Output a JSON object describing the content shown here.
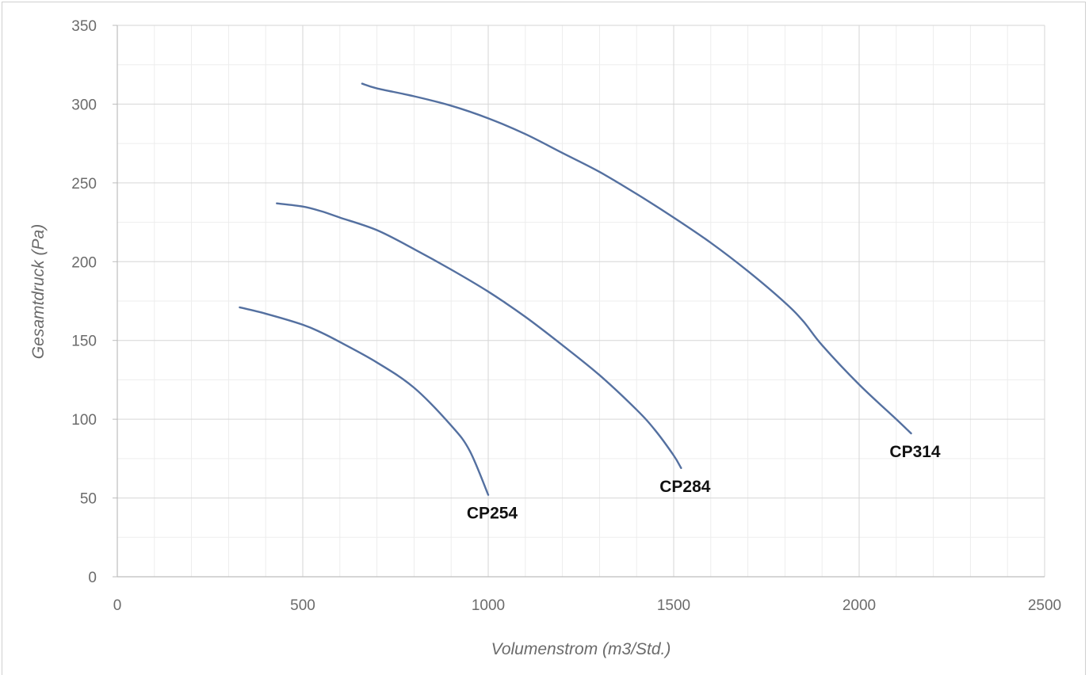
{
  "chart_data": {
    "type": "line",
    "title": "",
    "xlabel": "Volumenstrom (m3/Std.)",
    "ylabel": "Gesamtdruck (Pa)",
    "xlim": [
      0,
      2500
    ],
    "ylim": [
      0,
      350
    ],
    "x_ticks": [
      0,
      500,
      1000,
      1500,
      2000,
      2500
    ],
    "y_ticks": [
      0,
      50,
      100,
      150,
      200,
      250,
      300,
      350
    ],
    "grid": true,
    "legend": "none",
    "line_color": "#5470a0",
    "series": [
      {
        "name": "CP254",
        "points": [
          [
            330,
            171
          ],
          [
            400,
            167
          ],
          [
            500,
            160
          ],
          [
            550,
            155
          ],
          [
            600,
            149
          ],
          [
            700,
            136
          ],
          [
            800,
            120
          ],
          [
            900,
            96
          ],
          [
            950,
            80
          ],
          [
            1000,
            52
          ]
        ]
      },
      {
        "name": "CP284",
        "points": [
          [
            430,
            237
          ],
          [
            500,
            235
          ],
          [
            550,
            232
          ],
          [
            600,
            228
          ],
          [
            700,
            220
          ],
          [
            800,
            208
          ],
          [
            900,
            195
          ],
          [
            1000,
            181
          ],
          [
            1100,
            165
          ],
          [
            1200,
            147
          ],
          [
            1300,
            128
          ],
          [
            1400,
            106
          ],
          [
            1450,
            93
          ],
          [
            1500,
            77
          ],
          [
            1520,
            69
          ]
        ]
      },
      {
        "name": "CP314",
        "points": [
          [
            660,
            313
          ],
          [
            700,
            310
          ],
          [
            800,
            305
          ],
          [
            900,
            299
          ],
          [
            1000,
            291
          ],
          [
            1100,
            281
          ],
          [
            1200,
            269
          ],
          [
            1300,
            257
          ],
          [
            1400,
            243
          ],
          [
            1500,
            228
          ],
          [
            1600,
            212
          ],
          [
            1700,
            194
          ],
          [
            1800,
            174
          ],
          [
            1850,
            162
          ],
          [
            1900,
            147
          ],
          [
            2000,
            122
          ],
          [
            2100,
            100
          ],
          [
            2140,
            91
          ]
        ]
      }
    ]
  }
}
